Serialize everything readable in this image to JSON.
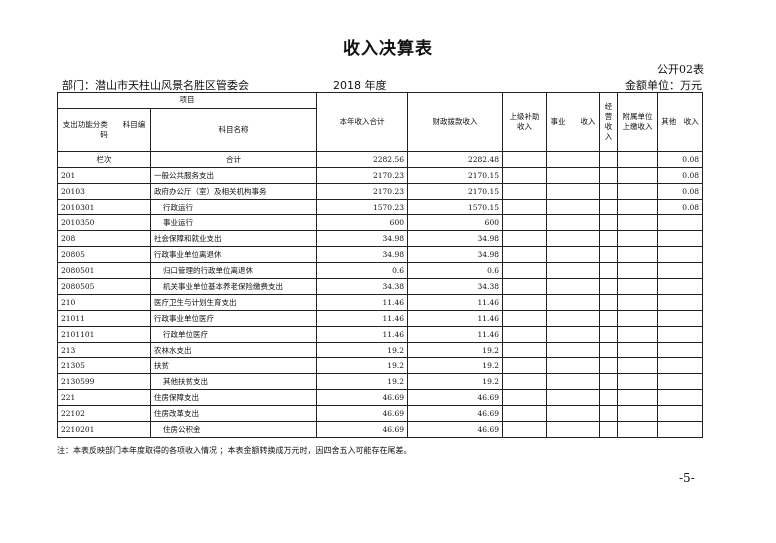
{
  "title": "收入决算表",
  "form_no": "公开02表",
  "department": "部门：潜山市天柱山风景名胜区管委会",
  "year": "2018 年度",
  "unit": "金额单位：万元",
  "headers": {
    "project": "项目",
    "code": "支出功能分类　　科目编码",
    "name": "科目名称",
    "total": "本年收入合计",
    "fiscal": "财政拨款收入",
    "superior": "上级补助收入",
    "business": "事业　　收入",
    "operating": "经营收入",
    "affiliated": "附属单位上缴收入",
    "other": "其他　收入"
  },
  "summary": {
    "label": "栏次",
    "name": "合计",
    "total": "2282.56",
    "fiscal": "2282.48",
    "other": "0.08"
  },
  "rows": [
    {
      "code": "201",
      "name": "一般公共服务支出",
      "total": "2170.23",
      "fiscal": "2170.15",
      "other": "0.08",
      "indent": false
    },
    {
      "code": "20103",
      "name": "政府办公厅（室）及相关机构事务",
      "total": "2170.23",
      "fiscal": "2170.15",
      "other": "0.08",
      "indent": false
    },
    {
      "code": "2010301",
      "name": "行政运行",
      "total": "1570.23",
      "fiscal": "1570.15",
      "other": "0.08",
      "indent": true
    },
    {
      "code": "2010350",
      "name": "事业运行",
      "total": "600",
      "fiscal": "600",
      "other": "",
      "indent": true
    },
    {
      "code": "208",
      "name": "社会保障和就业支出",
      "total": "34.98",
      "fiscal": "34.98",
      "other": "",
      "indent": false
    },
    {
      "code": "20805",
      "name": "行政事业单位离退休",
      "total": "34.98",
      "fiscal": "34.98",
      "other": "",
      "indent": false
    },
    {
      "code": "2080501",
      "name": "归口管理的行政单位离退休",
      "total": "0.6",
      "fiscal": "0.6",
      "other": "",
      "indent": true
    },
    {
      "code": "2080505",
      "name": "机关事业单位基本养老保险缴费支出",
      "total": "34.38",
      "fiscal": "34.38",
      "other": "",
      "indent": true
    },
    {
      "code": "210",
      "name": "医疗卫生与计划生育支出",
      "total": "11.46",
      "fiscal": "11.46",
      "other": "",
      "indent": false
    },
    {
      "code": "21011",
      "name": "行政事业单位医疗",
      "total": "11.46",
      "fiscal": "11.46",
      "other": "",
      "indent": false
    },
    {
      "code": "2101101",
      "name": "行政单位医疗",
      "total": "11.46",
      "fiscal": "11.46",
      "other": "",
      "indent": true
    },
    {
      "code": "213",
      "name": "农林水支出",
      "total": "19.2",
      "fiscal": "19.2",
      "other": "",
      "indent": false
    },
    {
      "code": "21305",
      "name": "扶贫",
      "total": "19.2",
      "fiscal": "19.2",
      "other": "",
      "indent": false
    },
    {
      "code": "2130599",
      "name": "其他扶贫支出",
      "total": "19.2",
      "fiscal": "19.2",
      "other": "",
      "indent": true
    },
    {
      "code": "221",
      "name": "住房保障支出",
      "total": "46.69",
      "fiscal": "46.69",
      "other": "",
      "indent": false
    },
    {
      "code": "22102",
      "name": "住房改革支出",
      "total": "46.69",
      "fiscal": "46.69",
      "other": "",
      "indent": false
    },
    {
      "code": "2210201",
      "name": "住房公积金",
      "total": "46.69",
      "fiscal": "46.69",
      "other": "",
      "indent": true
    }
  ],
  "note": "注：本表反映部门本年度取得的各项收入情况 ；本表金额转换成万元时，因四舍五入可能存在尾差。",
  "page_number": "-5-"
}
